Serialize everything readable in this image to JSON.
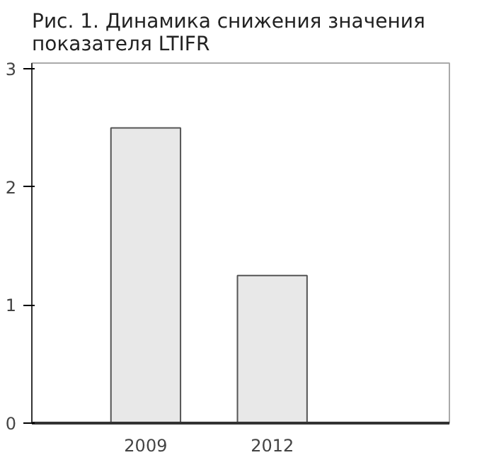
{
  "chart_data": {
    "type": "bar",
    "title": "Рис. 1. Динамика снижения значения показателя LTIFR",
    "categories": [
      "2009",
      "2012"
    ],
    "values": [
      2.5,
      1.25
    ],
    "color": "#e8e8e8",
    "ylim": [
      0,
      3.05
    ],
    "yticks": [
      0,
      1,
      2,
      3
    ],
    "grid": false
  }
}
